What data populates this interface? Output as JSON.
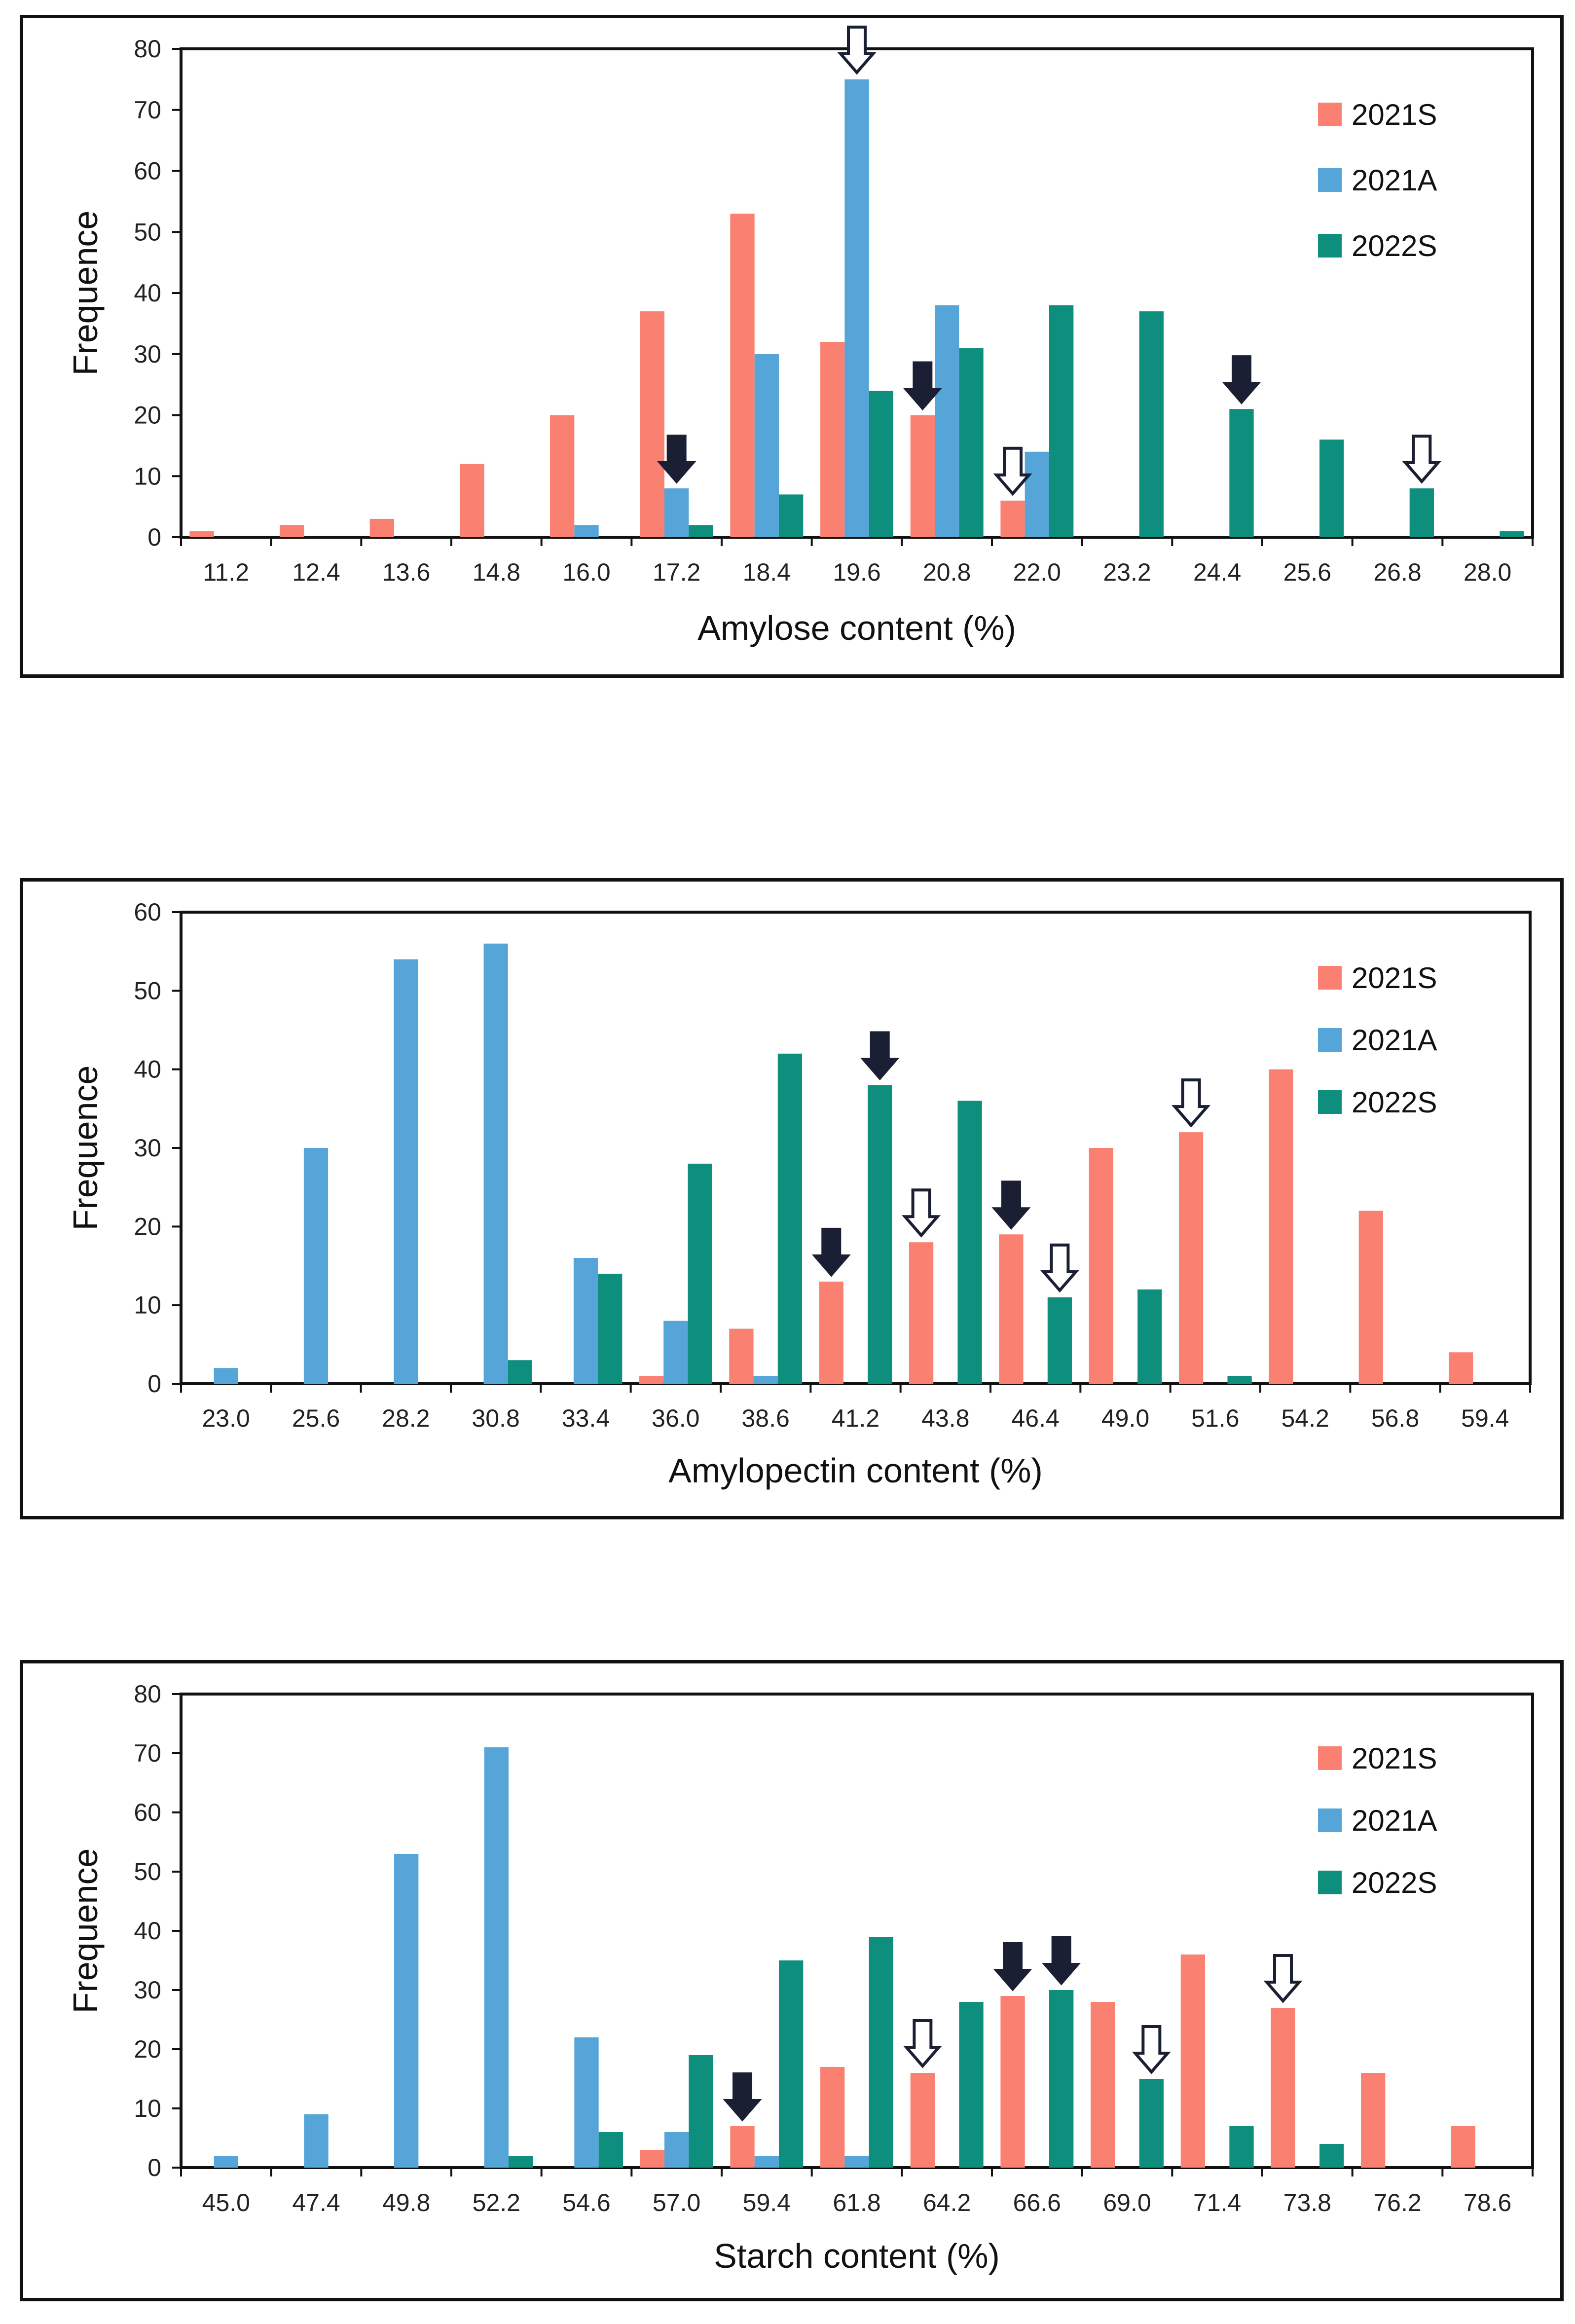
{
  "colors": {
    "2021S": "#FA8072",
    "2021A": "#56A5D8",
    "2022S": "#0E8F7E"
  },
  "chart_data": [
    {
      "type": "bar",
      "xlabel": "Amylose content (%)",
      "ylabel": "Frequence",
      "ylim": [
        0,
        80
      ],
      "yticks": [
        0,
        10,
        20,
        30,
        40,
        50,
        60,
        70,
        80
      ],
      "categories": [
        "11.2",
        "12.4",
        "13.6",
        "14.8",
        "16.0",
        "17.2",
        "18.4",
        "19.6",
        "20.8",
        "22.0",
        "23.2",
        "24.4",
        "25.6",
        "26.8",
        "28.0"
      ],
      "legend": [
        "2021S",
        "2021A",
        "2022S"
      ],
      "legend_position": "top-right",
      "series": [
        {
          "name": "2021S",
          "values": [
            1,
            2,
            3,
            12,
            20,
            37,
            53,
            32,
            20,
            6,
            0,
            0,
            0,
            0,
            0
          ]
        },
        {
          "name": "2021A",
          "values": [
            0,
            0,
            0,
            0,
            2,
            8,
            30,
            75,
            38,
            14,
            0,
            0,
            0,
            0,
            0
          ]
        },
        {
          "name": "2022S",
          "values": [
            0,
            0,
            0,
            0,
            0,
            2,
            7,
            24,
            31,
            38,
            37,
            21,
            16,
            8,
            1
          ]
        }
      ],
      "markers": [
        {
          "category": "17.2",
          "series": "2021A",
          "style": "filled"
        },
        {
          "category": "19.6",
          "series": "2021A",
          "style": "hollow"
        },
        {
          "category": "20.8",
          "series": "2021S",
          "style": "filled"
        },
        {
          "category": "22.0",
          "series": "2021S",
          "style": "hollow"
        },
        {
          "category": "24.4",
          "series": "2022S",
          "style": "filled"
        },
        {
          "category": "26.8",
          "series": "2022S",
          "style": "hollow"
        }
      ]
    },
    {
      "type": "bar",
      "xlabel": "Amylopectin content (%)",
      "ylabel": "Frequence",
      "ylim": [
        0,
        60
      ],
      "yticks": [
        0,
        10,
        20,
        30,
        40,
        50,
        60
      ],
      "categories": [
        "23.0",
        "25.6",
        "28.2",
        "30.8",
        "33.4",
        "36.0",
        "38.6",
        "41.2",
        "43.8",
        "46.4",
        "49.0",
        "51.6",
        "54.2",
        "56.8",
        "59.4"
      ],
      "legend": [
        "2021S",
        "2021A",
        "2022S"
      ],
      "legend_position": "top-right",
      "series": [
        {
          "name": "2021S",
          "values": [
            0,
            0,
            0,
            0,
            0,
            1,
            7,
            13,
            18,
            19,
            30,
            32,
            40,
            22,
            4
          ]
        },
        {
          "name": "2021A",
          "values": [
            2,
            30,
            54,
            56,
            16,
            8,
            1,
            0,
            0,
            0,
            0,
            0,
            0,
            0,
            0
          ]
        },
        {
          "name": "2022S",
          "values": [
            0,
            0,
            0,
            3,
            14,
            28,
            42,
            38,
            36,
            11,
            12,
            1,
            0,
            0,
            0
          ]
        }
      ],
      "markers": [
        {
          "category": "41.2",
          "series": "2021S",
          "style": "filled"
        },
        {
          "category": "41.2",
          "series": "2022S",
          "style": "filled"
        },
        {
          "category": "43.8",
          "series": "2021S",
          "style": "hollow"
        },
        {
          "category": "46.4",
          "series": "2021S",
          "style": "filled"
        },
        {
          "category": "46.4",
          "series": "2022S",
          "style": "hollow"
        },
        {
          "category": "51.6",
          "series": "2021S",
          "style": "hollow"
        }
      ]
    },
    {
      "type": "bar",
      "xlabel": "Starch content (%)",
      "ylabel": "Frequence",
      "ylim": [
        0,
        80
      ],
      "yticks": [
        0,
        10,
        20,
        30,
        40,
        50,
        60,
        70,
        80
      ],
      "categories": [
        "45.0",
        "47.4",
        "49.8",
        "52.2",
        "54.6",
        "57.0",
        "59.4",
        "61.8",
        "64.2",
        "66.6",
        "69.0",
        "71.4",
        "73.8",
        "76.2",
        "78.6"
      ],
      "legend": [
        "2021S",
        "2021A",
        "2022S"
      ],
      "legend_position": "top-right",
      "series": [
        {
          "name": "2021S",
          "values": [
            0,
            0,
            0,
            0,
            0,
            3,
            7,
            17,
            16,
            29,
            28,
            36,
            27,
            16,
            7
          ]
        },
        {
          "name": "2021A",
          "values": [
            2,
            9,
            53,
            71,
            22,
            6,
            2,
            2,
            0,
            0,
            0,
            0,
            0,
            0,
            0
          ]
        },
        {
          "name": "2022S",
          "values": [
            0,
            0,
            0,
            2,
            6,
            19,
            35,
            39,
            28,
            30,
            15,
            7,
            4,
            0,
            0
          ]
        }
      ],
      "markers": [
        {
          "category": "59.4",
          "series": "2021S",
          "style": "filled"
        },
        {
          "category": "64.2",
          "series": "2021S",
          "style": "hollow"
        },
        {
          "category": "66.6",
          "series": "2021S",
          "style": "filled"
        },
        {
          "category": "66.6",
          "series": "2022S",
          "style": "filled"
        },
        {
          "category": "69.0",
          "series": "2022S",
          "style": "hollow"
        },
        {
          "category": "73.8",
          "series": "2021S",
          "style": "hollow"
        }
      ]
    }
  ]
}
